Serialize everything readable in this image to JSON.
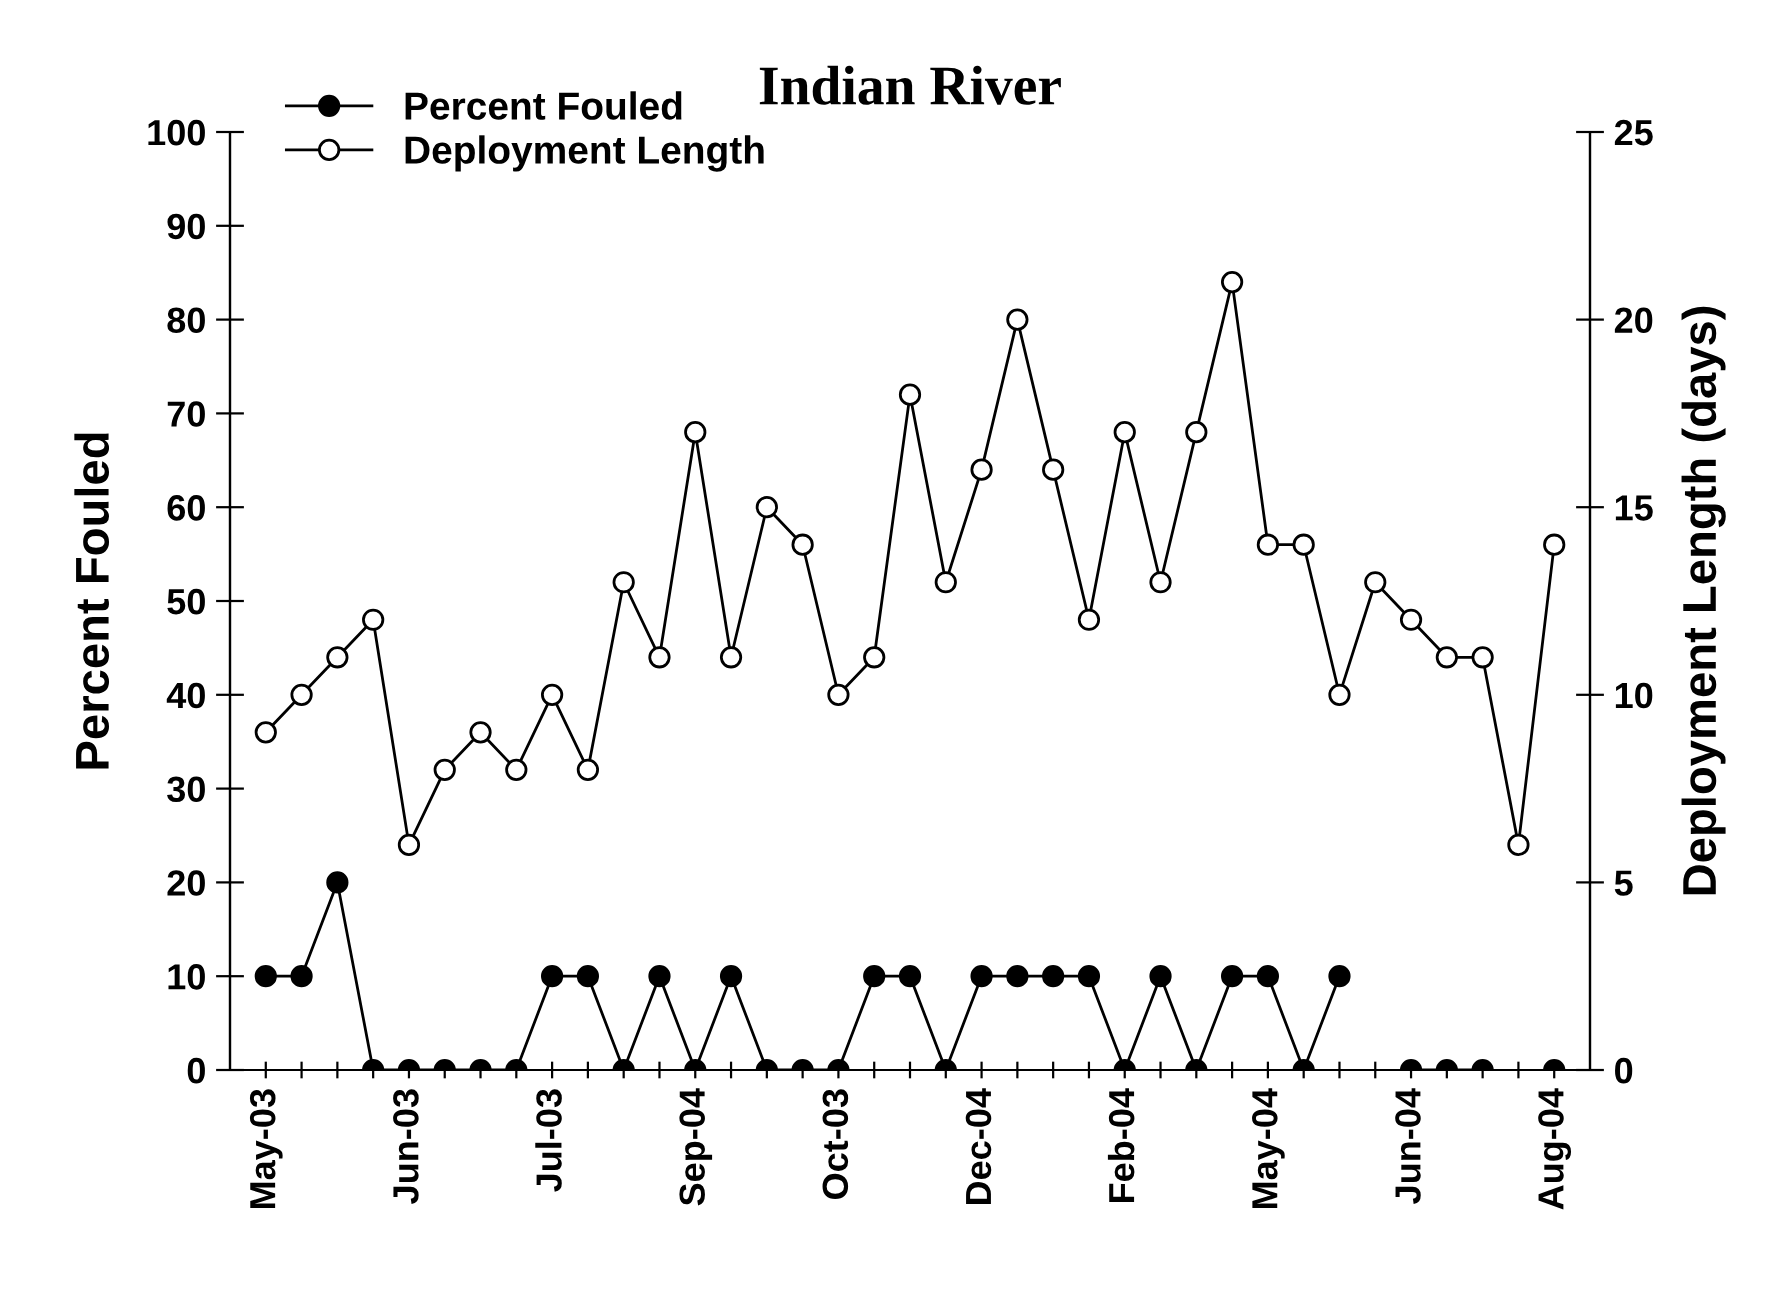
{
  "chart_data": {
    "type": "line",
    "title": "Indian River",
    "ylabel": "Percent Fouled",
    "y2label": "Deployment Length (days)",
    "categories": [
      "May-03",
      null,
      null,
      null,
      "Jun-03",
      null,
      null,
      null,
      "Jul-03",
      null,
      null,
      null,
      "Sep-04",
      null,
      null,
      null,
      "Oct-03",
      null,
      null,
      null,
      "Dec-04",
      null,
      null,
      null,
      "Feb-04",
      null,
      null,
      null,
      "May-04",
      null,
      null,
      null,
      "Jun-04",
      null,
      null,
      null,
      "Aug-04"
    ],
    "series": [
      {
        "name": "Percent Fouled",
        "color": "#000000",
        "marker": "circle",
        "values": [
          10,
          10,
          20,
          0,
          0,
          0,
          0,
          0,
          10,
          10,
          0,
          10,
          0,
          10,
          0,
          0,
          0,
          10,
          10,
          0,
          10,
          10,
          10,
          10,
          0,
          10,
          0,
          10,
          10,
          0,
          10,
          null,
          0,
          0,
          0,
          null,
          0
        ]
      },
      {
        "name": "Deployment Length",
        "color": "#000000",
        "marker": "circle",
        "axis": "y2",
        "values": [
          9,
          10,
          11,
          12,
          6,
          8,
          9,
          8,
          10,
          8,
          13,
          11,
          17,
          11,
          15,
          14,
          10,
          11,
          18,
          13,
          16,
          20,
          16,
          12,
          17,
          13,
          17,
          21,
          14,
          14,
          10,
          13,
          12,
          11,
          11,
          6,
          14
        ]
      }
    ],
    "ylim": [
      0,
      100
    ],
    "yticks": [
      0,
      10,
      20,
      30,
      40,
      50,
      60,
      70,
      80,
      90,
      100
    ],
    "y2lim": [
      0,
      25
    ],
    "y2ticks": [
      0,
      5,
      10,
      15,
      20,
      25
    ],
    "legend": "top left",
    "grid": false
  }
}
